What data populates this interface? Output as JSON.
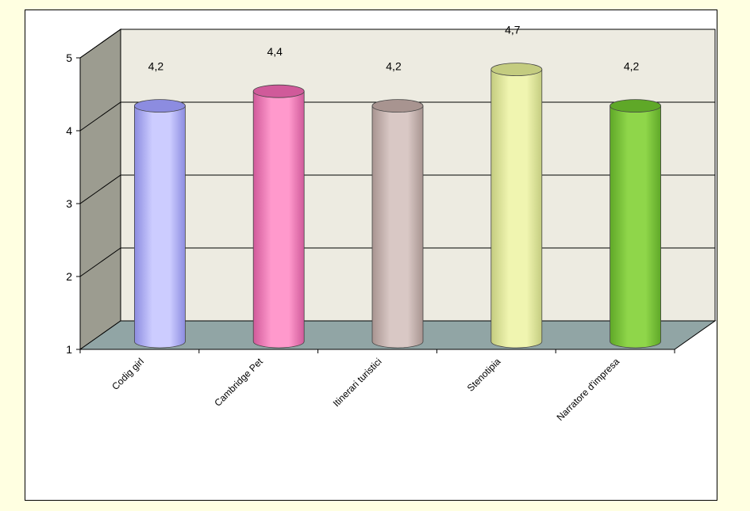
{
  "chart_data": {
    "type": "bar",
    "style": "3d-cylinder",
    "categories": [
      "Codig girl",
      "Cambridge Pet",
      "Itinerari turistici",
      "Stenotipia",
      "Narratore d'impresa"
    ],
    "values": [
      4.2,
      4.4,
      4.2,
      4.7,
      4.2
    ],
    "value_labels": [
      "4,2",
      "4,4",
      "4,2",
      "4,7",
      "4,2"
    ],
    "title": "",
    "xlabel": "",
    "ylabel": "",
    "ylim": [
      1,
      5
    ],
    "yticks": [
      "1",
      "2",
      "3",
      "4",
      "5"
    ],
    "grid": true,
    "legend": "none",
    "colors": [
      "#CCCCFF",
      "#FF99CC",
      "#D9C8C5",
      "#F0F5B0",
      "#8FD64A"
    ],
    "colors_dark": [
      "#8C8CE0",
      "#D05A9A",
      "#A89490",
      "#C4CC80",
      "#5FA828"
    ],
    "wall_color": "#EDEBE1",
    "side_wall_color": "#9C9C90",
    "floor_color": "#91A5A5"
  }
}
